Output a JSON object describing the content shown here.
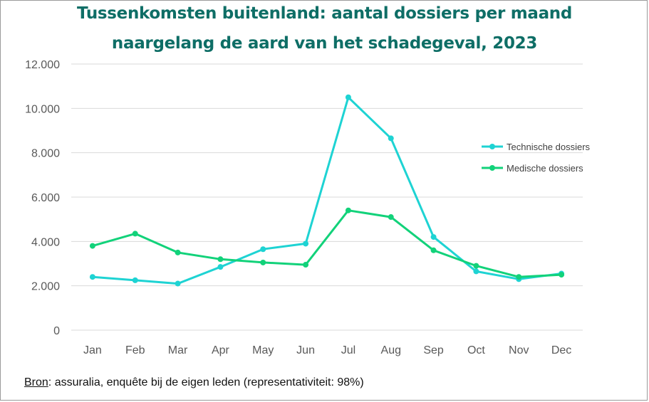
{
  "title_line1": "Tussenkomsten buitenland: aantal dossiers per maand",
  "title_line2": "naargelang de aard van het schadegeval, 2023",
  "source": {
    "label": "Bron",
    "text": ": assuralia, enquête bij de eigen leden (representativiteit: 98%)"
  },
  "colors": {
    "title": "#0e6e66",
    "technische": "#1ed3d3",
    "medische": "#12d27a",
    "grid": "#d9d9d9"
  },
  "chart_data": {
    "type": "line",
    "title": "Tussenkomsten buitenland: aantal dossiers per maand naargelang de aard van het schadegeval, 2023",
    "categories": [
      "Jan",
      "Feb",
      "Mar",
      "Apr",
      "May",
      "Jun",
      "Jul",
      "Aug",
      "Sep",
      "Oct",
      "Nov",
      "Dec"
    ],
    "ylim": [
      0,
      12000
    ],
    "yticks": [
      0,
      2000,
      4000,
      6000,
      8000,
      10000,
      12000
    ],
    "ytick_labels": [
      "0",
      "2.000",
      "4.000",
      "6.000",
      "8.000",
      "10.000",
      "12.000"
    ],
    "grid": true,
    "legend_position": "right",
    "series": [
      {
        "name": "Technische dossiers",
        "color": "#1ed3d3",
        "values": [
          2400,
          2250,
          2100,
          2850,
          3650,
          3900,
          10500,
          8650,
          4200,
          2650,
          2300,
          2550
        ]
      },
      {
        "name": "Medische dossiers",
        "color": "#12d27a",
        "values": [
          3800,
          4350,
          3500,
          3200,
          3050,
          2950,
          5400,
          5100,
          3600,
          2900,
          2400,
          2500
        ]
      }
    ]
  }
}
